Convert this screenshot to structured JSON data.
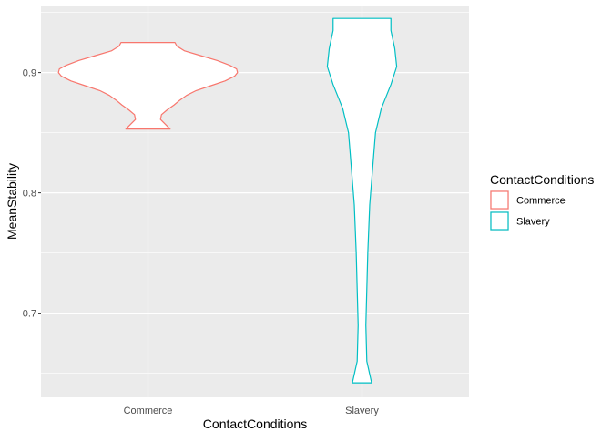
{
  "chart_data": {
    "type": "violin",
    "xlabel": "ContactConditions",
    "ylabel": "MeanStability",
    "categories": [
      "Commerce",
      "Slavery"
    ],
    "ylim": [
      0.63,
      0.955
    ],
    "y_ticks": [
      0.7,
      0.8,
      0.9
    ],
    "y_tick_labels": [
      "0.7",
      "0.8",
      "0.9"
    ],
    "grid": true,
    "legend": {
      "title": "ContactConditions",
      "position": "right",
      "entries": [
        {
          "label": "Commerce",
          "color": "#F8766D"
        },
        {
          "label": "Slavery",
          "color": "#00BFC4"
        }
      ]
    },
    "series": [
      {
        "name": "Commerce",
        "color": "#F8766D",
        "range": [
          0.853,
          0.925
        ],
        "profile": [
          [
            0.925,
            0.28
          ],
          [
            0.922,
            0.3
          ],
          [
            0.918,
            0.38
          ],
          [
            0.914,
            0.55
          ],
          [
            0.91,
            0.72
          ],
          [
            0.906,
            0.85
          ],
          [
            0.903,
            0.92
          ],
          [
            0.9,
            0.93
          ],
          [
            0.897,
            0.9
          ],
          [
            0.893,
            0.8
          ],
          [
            0.889,
            0.65
          ],
          [
            0.885,
            0.5
          ],
          [
            0.881,
            0.4
          ],
          [
            0.877,
            0.33
          ],
          [
            0.873,
            0.27
          ],
          [
            0.869,
            0.2
          ],
          [
            0.865,
            0.14
          ],
          [
            0.861,
            0.13
          ],
          [
            0.857,
            0.18
          ],
          [
            0.853,
            0.23
          ]
        ]
      },
      {
        "name": "Slavery",
        "color": "#00BFC4",
        "range": [
          0.642,
          0.945
        ],
        "profile": [
          [
            0.945,
            0.3
          ],
          [
            0.935,
            0.3
          ],
          [
            0.92,
            0.34
          ],
          [
            0.905,
            0.36
          ],
          [
            0.89,
            0.3
          ],
          [
            0.87,
            0.2
          ],
          [
            0.85,
            0.14
          ],
          [
            0.82,
            0.11
          ],
          [
            0.79,
            0.08
          ],
          [
            0.75,
            0.06
          ],
          [
            0.72,
            0.05
          ],
          [
            0.69,
            0.04
          ],
          [
            0.66,
            0.05
          ],
          [
            0.642,
            0.1
          ]
        ]
      }
    ]
  }
}
